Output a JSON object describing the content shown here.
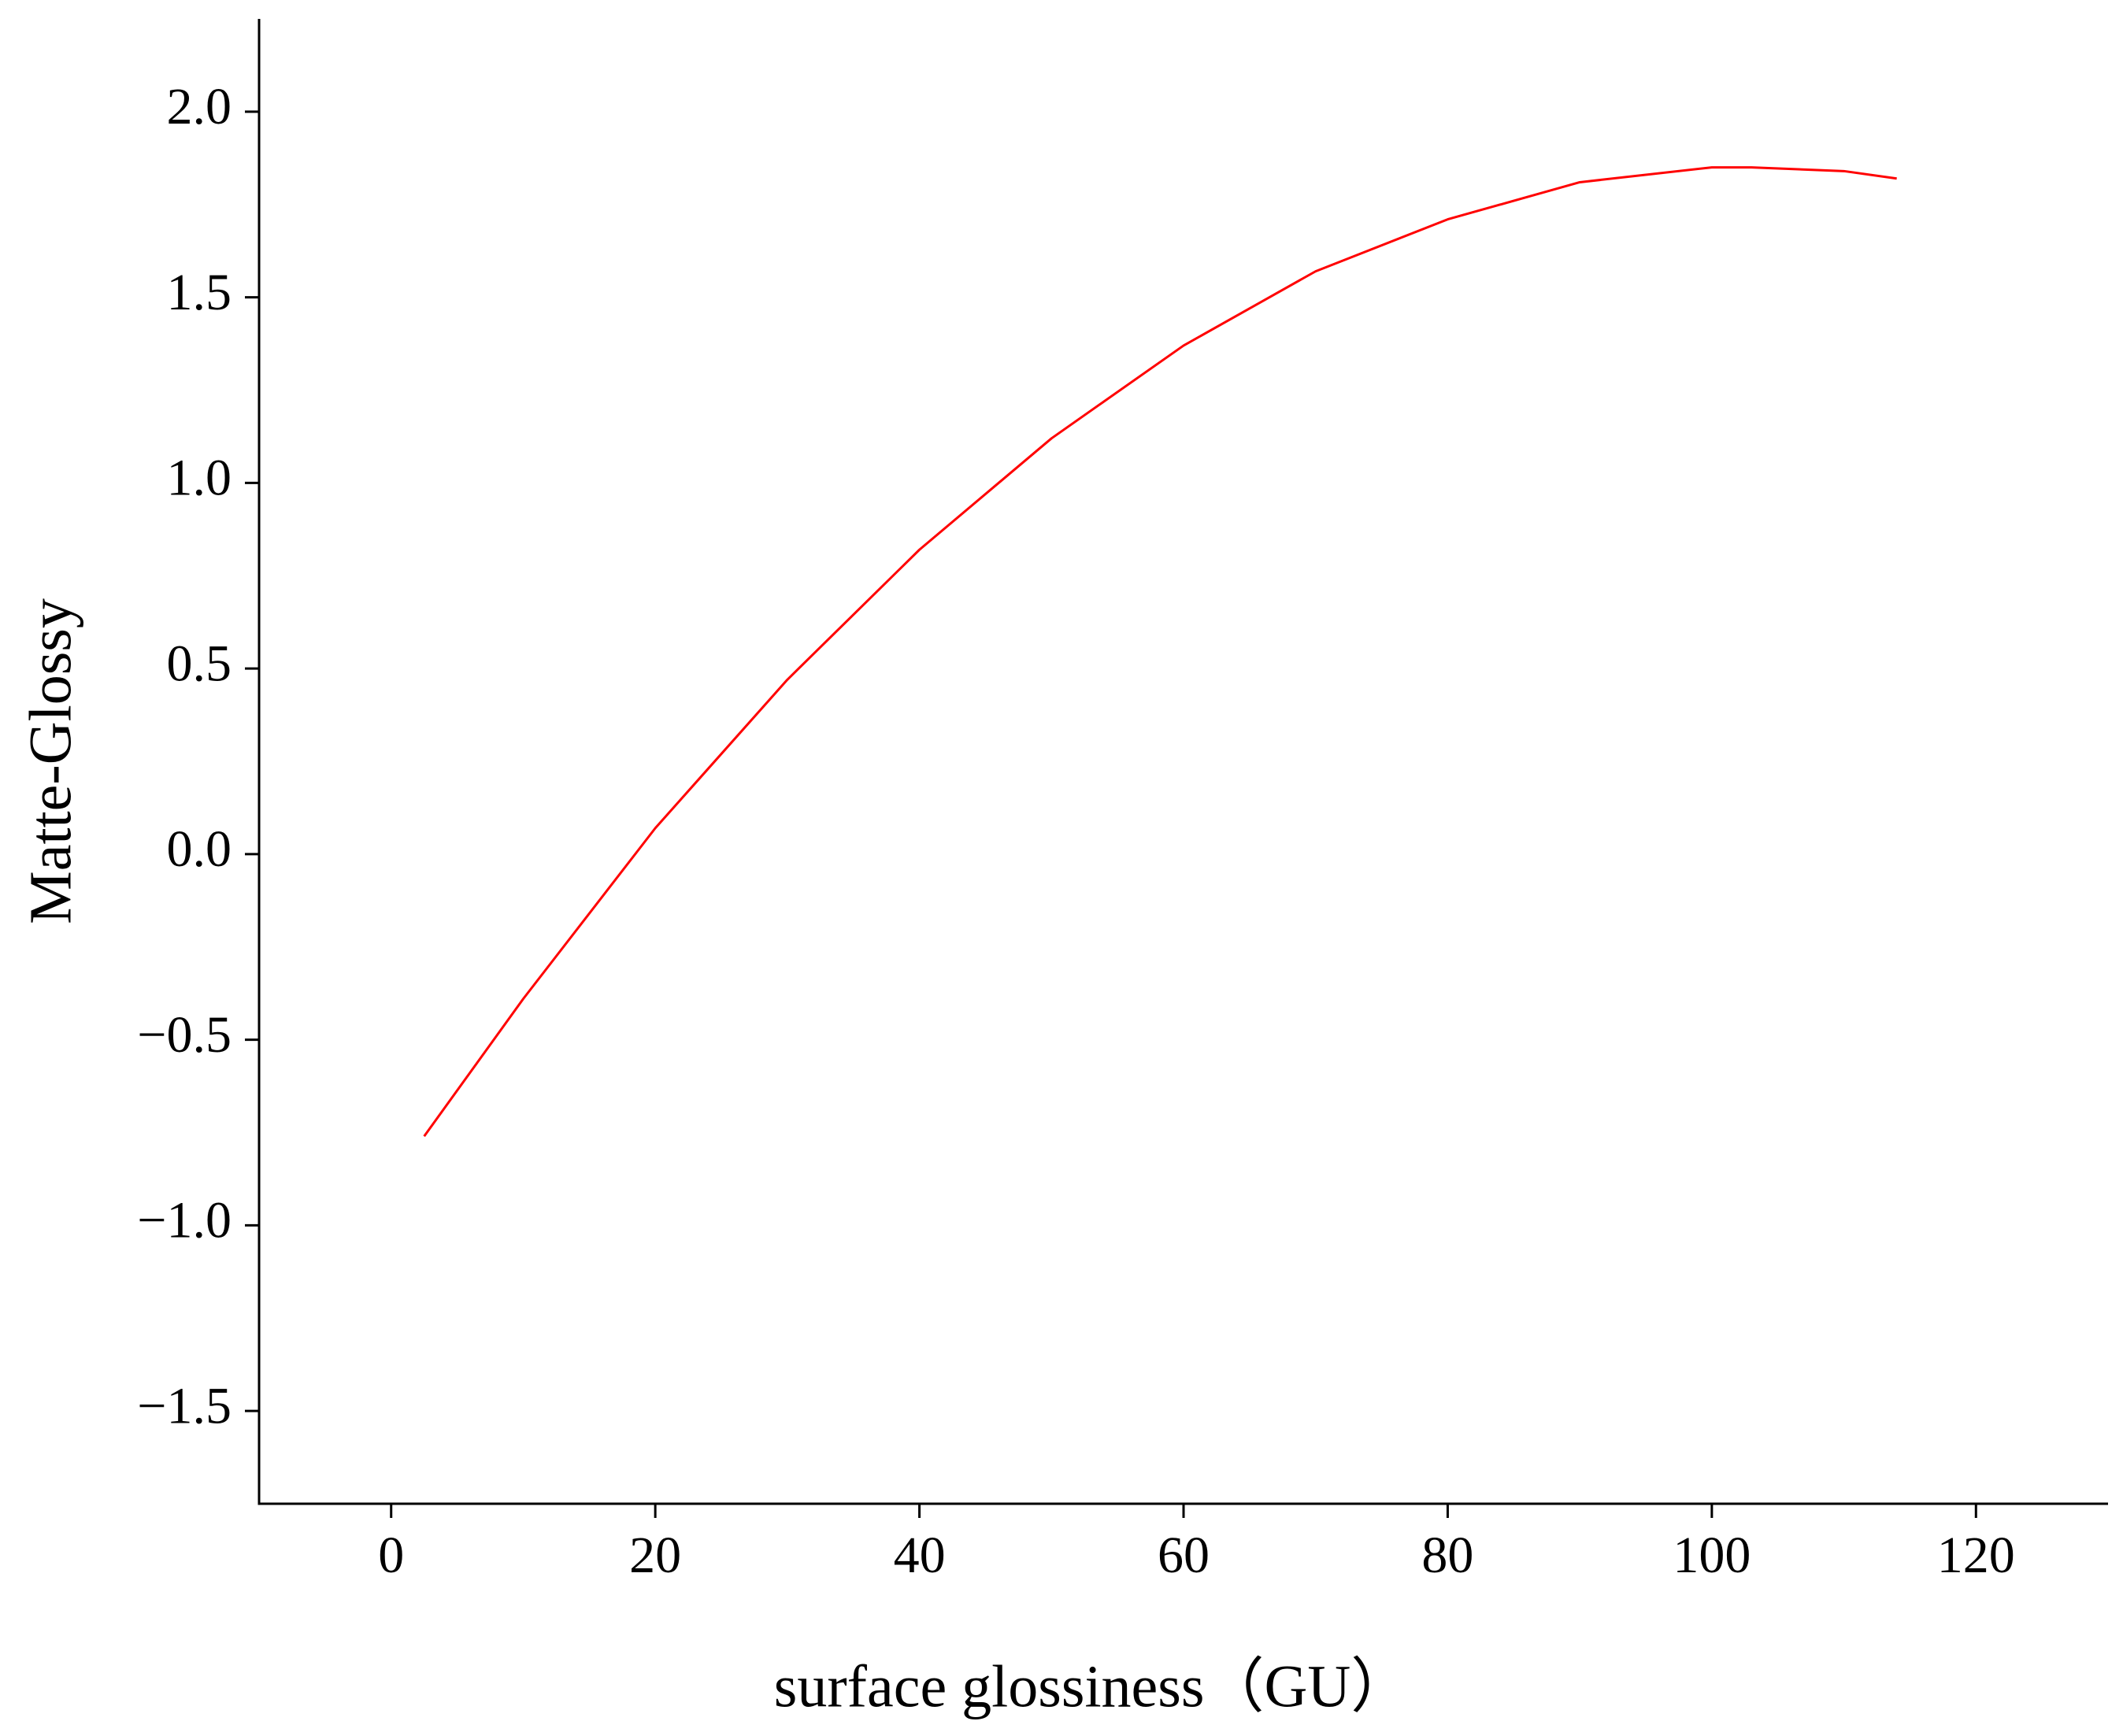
{
  "chart_data": {
    "type": "line",
    "x_label": "surface glossiness（GU）",
    "y_label": "Matte-Glossy",
    "x": [
      2.5,
      10,
      20,
      30,
      40,
      50,
      60,
      70,
      80,
      90,
      100,
      103,
      110,
      114
    ],
    "series": [
      {
        "color": "#ff0000",
        "values": [
          -0.76,
          -0.39,
          0.07,
          0.47,
          0.82,
          1.12,
          1.37,
          1.57,
          1.71,
          1.81,
          1.85,
          1.85,
          1.84,
          1.82
        ]
      }
    ],
    "xlim": [
      -10,
      130
    ],
    "xticks": [
      0,
      20,
      40,
      60,
      80,
      100,
      120
    ],
    "ylim": [
      -1.75,
      2.25
    ],
    "yticks": [
      {
        "value": -1.5,
        "label": "−1.5"
      },
      {
        "value": -1,
        "label": "−1.0"
      },
      {
        "value": -0.5,
        "label": "−0.5"
      },
      {
        "value": 0,
        "label": "0.0"
      },
      0.5,
      {
        "value": 1,
        "label": "1.0"
      },
      1.5,
      {
        "value": 2,
        "label": "2.0"
      }
    ],
    "grid": false
  }
}
